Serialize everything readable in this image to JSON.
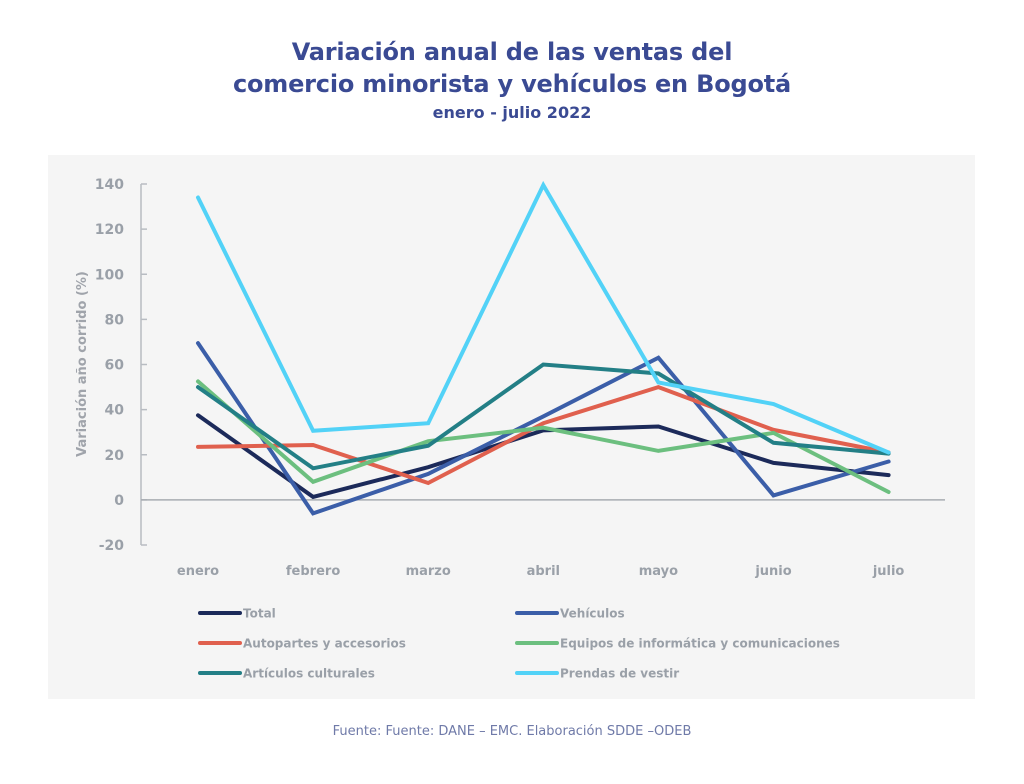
{
  "header": {
    "title_line1": "Variación anual de las ventas del",
    "title_line2": "comercio minorista y vehículos en Bogotá",
    "subtitle": "enero - julio 2022"
  },
  "footer": {
    "source": "Fuente: Fuente: DANE – EMC. Elaboración SDDE –ODEB"
  },
  "chart_data": {
    "type": "line",
    "title": "Variación anual de las ventas del comercio minorista y vehículos en Bogotá",
    "subtitle": "enero - julio 2022",
    "xlabel": "",
    "ylabel": "Variación año corrido (%)",
    "categories": [
      "enero",
      "febrero",
      "marzo",
      "abril",
      "mayo",
      "junio",
      "julio"
    ],
    "ylim": [
      -20,
      140
    ],
    "yticks": [
      140,
      120,
      100,
      80,
      60,
      40,
      20,
      0,
      -20
    ],
    "grid": false,
    "legend_position": "bottom",
    "series": [
      {
        "name": "Total",
        "color": "#1c2a5a",
        "values": [
          37.5,
          1.3,
          14.5,
          30.8,
          32.5,
          16.4,
          11
        ]
      },
      {
        "name": "Vehículos",
        "color": "#3b5ea8",
        "values": [
          69.5,
          -6,
          11.5,
          37,
          63,
          2,
          17
        ]
      },
      {
        "name": "Autopartes y accesorios",
        "color": "#e0604e",
        "values": [
          23.5,
          24.3,
          7.5,
          34,
          50,
          31,
          21
        ]
      },
      {
        "name": "Equipos de informática y comunicaciones",
        "color": "#6cbf7f",
        "values": [
          52.5,
          8,
          26,
          32,
          21.7,
          29.7,
          3.5
        ]
      },
      {
        "name": "Artículos culturales",
        "color": "#237f86",
        "values": [
          50,
          14,
          24,
          60,
          56,
          25.3,
          20.5
        ]
      },
      {
        "name": "Prendas de vestir",
        "color": "#52d2f7",
        "values": [
          134,
          30.6,
          34,
          139.5,
          52,
          42.5,
          21
        ]
      }
    ]
  }
}
